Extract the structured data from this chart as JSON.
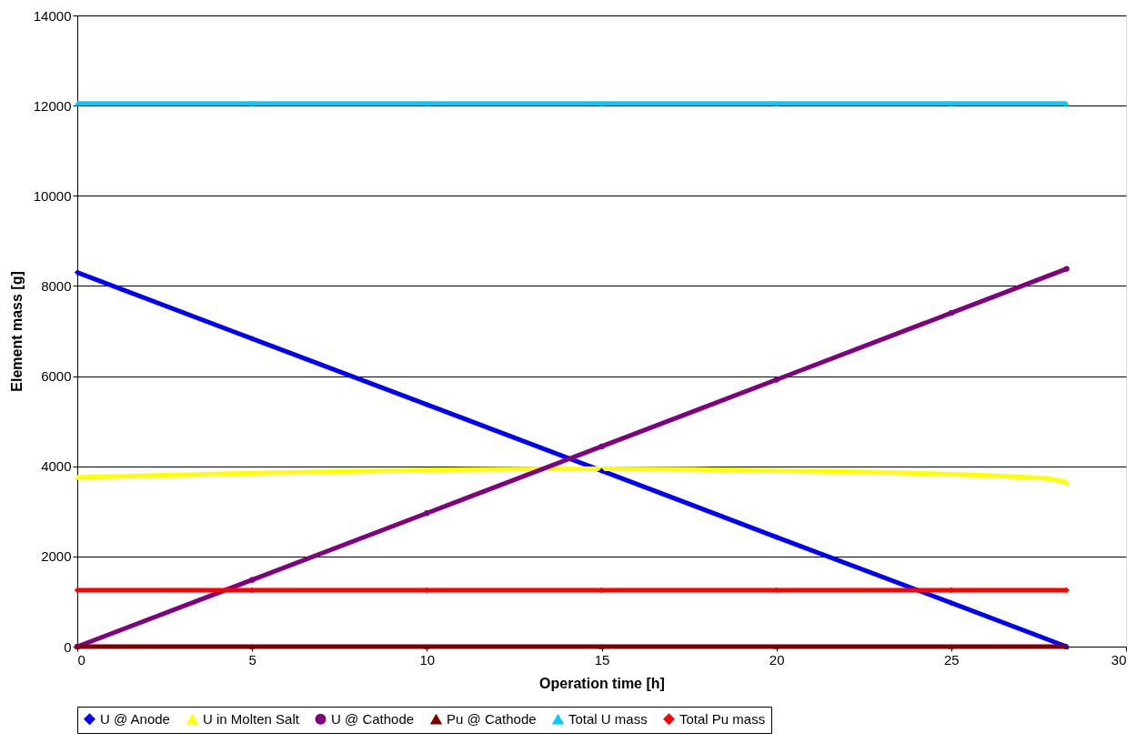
{
  "chart_data": {
    "type": "line",
    "xlabel": "Operation time [h]",
    "ylabel": "Element mass [g]",
    "x": [
      0,
      5,
      10,
      15,
      20,
      25,
      28.3
    ],
    "xlim": [
      0,
      30
    ],
    "xticks": [
      0,
      5,
      10,
      15,
      20,
      25,
      30
    ],
    "ylim": [
      0,
      14000
    ],
    "yticks": [
      0,
      2000,
      4000,
      6000,
      8000,
      10000,
      12000,
      14000
    ],
    "grid": "y",
    "legend": "bottom",
    "line_style": "solid",
    "series": [
      {
        "name": "U @ Anode",
        "color": "#0000ff",
        "marker": "diamond",
        "values": [
          8300,
          6830,
          5370,
          3900,
          2430,
          970,
          0
        ]
      },
      {
        "name": "U in Molten Salt",
        "color": "#ffff00",
        "marker": "triangle",
        "x": [
          0,
          5,
          10,
          14,
          18,
          23,
          26,
          27.8,
          28.3
        ],
        "values": [
          3750,
          3850,
          3920,
          3950,
          3930,
          3870,
          3800,
          3730,
          3650
        ]
      },
      {
        "name": "U @ Cathode",
        "color": "#800080",
        "marker": "circle",
        "values": [
          0,
          1480,
          2960,
          4440,
          5920,
          7400,
          8380
        ]
      },
      {
        "name": "Pu @ Cathode",
        "color": "#800000",
        "marker": "triangle",
        "values": [
          0,
          0,
          0,
          0,
          0,
          0,
          0
        ]
      },
      {
        "name": "Total U mass",
        "color": "#00ccff",
        "marker": "triangle",
        "values": [
          12050,
          12050,
          12050,
          12050,
          12050,
          12050,
          12050
        ]
      },
      {
        "name": "Total Pu mass",
        "color": "#ff0000",
        "marker": "diamond",
        "values": [
          1250,
          1250,
          1250,
          1250,
          1250,
          1250,
          1250
        ]
      }
    ]
  }
}
